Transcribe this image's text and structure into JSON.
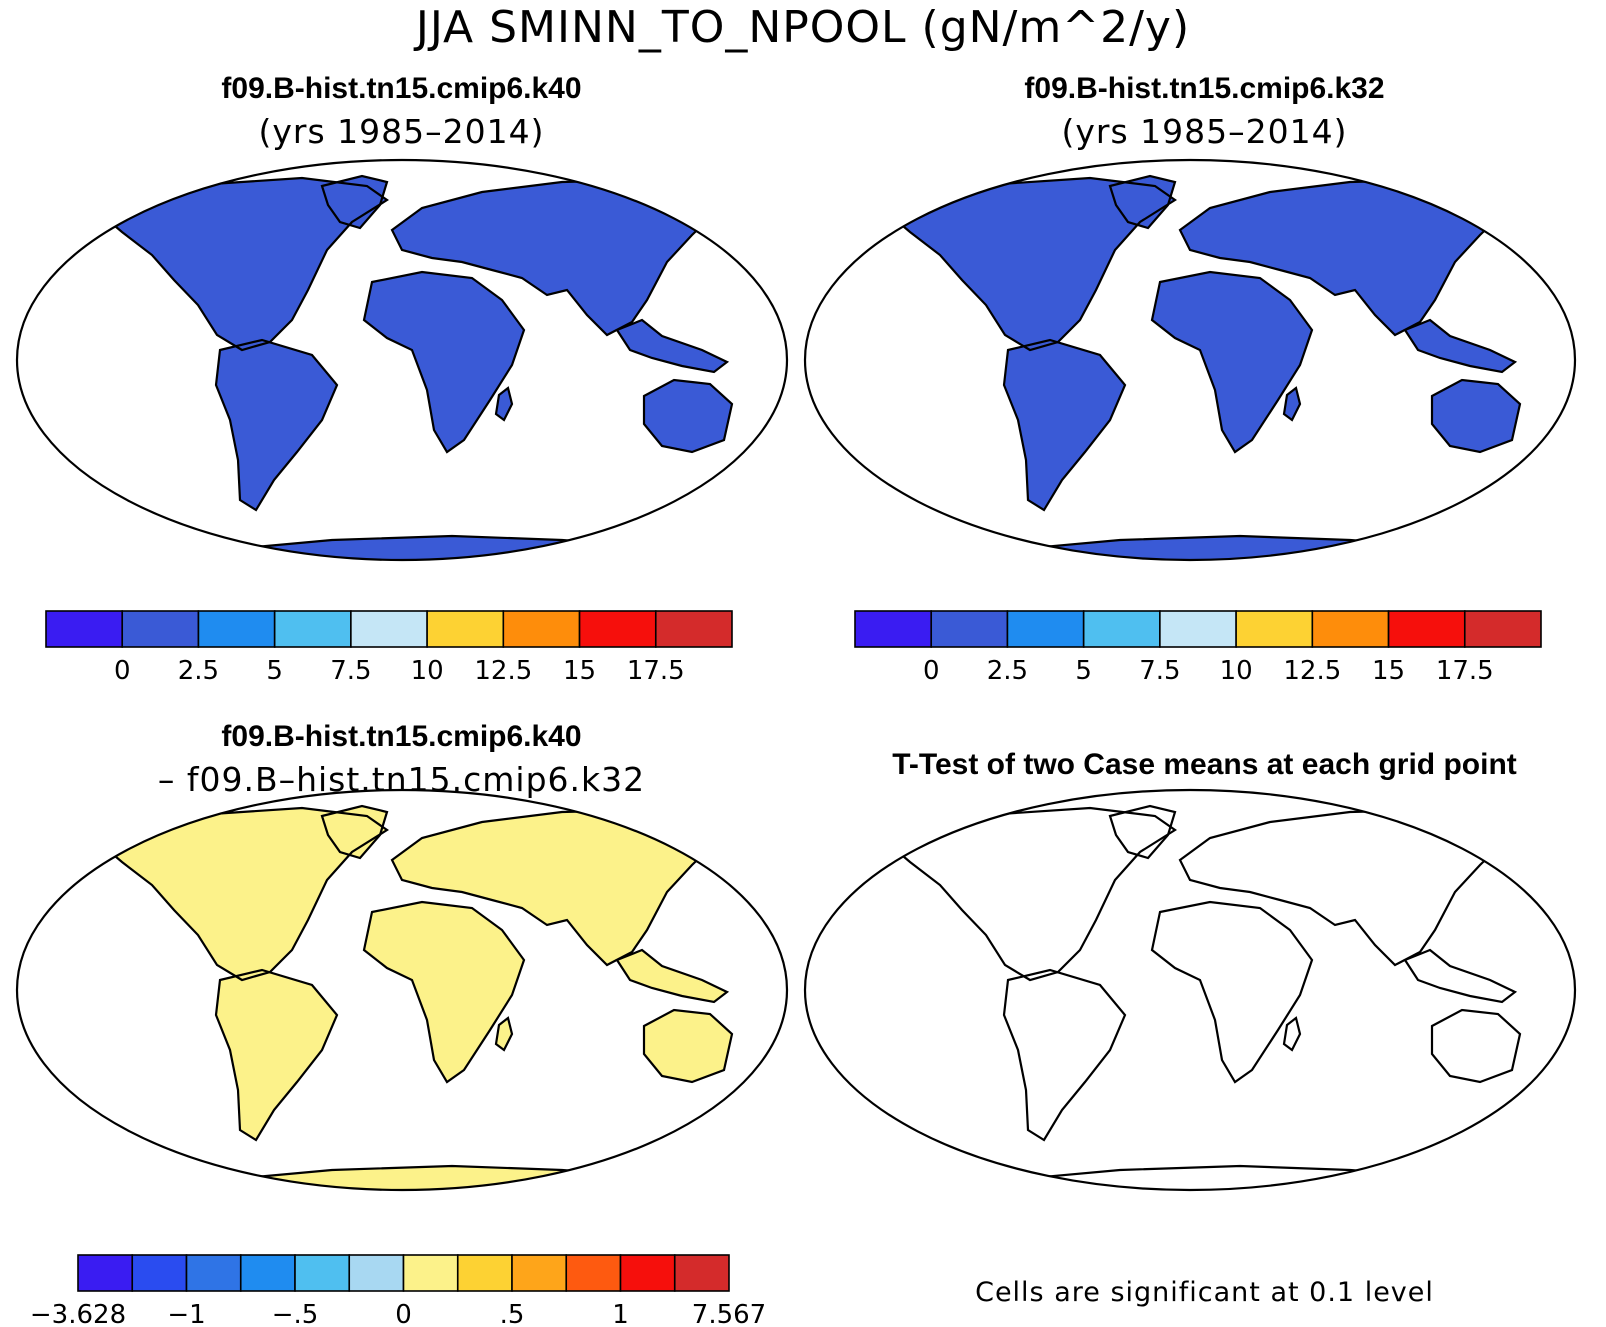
{
  "main_title": "JJA SMINN_TO_NPOOL (gN/m^2/y)",
  "panels": [
    {
      "title_line1": "f09.B-hist.tn15.cmip6.k40",
      "title_line2": "(yrs 1985–2014)",
      "colorbar_labels": [
        "0",
        "2.5",
        "5",
        "7.5",
        "10",
        "12.5",
        "15",
        "17.5"
      ],
      "colorbar_colors": [
        "#3a1cf2",
        "#3a5ad6",
        "#1f8cf0",
        "#4fbff0",
        "#c5e6f6",
        "#fdd233",
        "#fe8d0b",
        "#f60f0c",
        "#d42b2b"
      ]
    },
    {
      "title_line1": "f09.B-hist.tn15.cmip6.k32",
      "title_line2": "(yrs 1985–2014)",
      "colorbar_labels": [
        "0",
        "2.5",
        "5",
        "7.5",
        "10",
        "12.5",
        "15",
        "17.5"
      ],
      "colorbar_colors": [
        "#3a1cf2",
        "#3a5ad6",
        "#1f8cf0",
        "#4fbff0",
        "#c5e6f6",
        "#fdd233",
        "#fe8d0b",
        "#f60f0c",
        "#d42b2b"
      ]
    },
    {
      "title_line1": "f09.B-hist.tn15.cmip6.k40",
      "title_line2": "– f09.B–hist.tn15.cmip6.k32",
      "colorbar_labels": [
        "−3.628",
        "−1",
        "−.5",
        "0",
        ".5",
        "1",
        "7.567"
      ],
      "colorbar_colors": [
        "#3a1cf2",
        "#2a4cf0",
        "#2f74e6",
        "#1f8cf0",
        "#4fbff0",
        "#a8d8f2",
        "#fcf28a",
        "#fdd233",
        "#fea51a",
        "#fe5a10",
        "#f60f0c",
        "#d42b2b"
      ]
    },
    {
      "title_line1": "T-Test of two Case means at each grid point",
      "footnote": "Cells are significant at 0.1 level",
      "significance_color": "#ee0000"
    }
  ],
  "map_colors": {
    "ocean": "#ffffff",
    "outline": "#000000",
    "diff_land": "#fcf28a"
  }
}
